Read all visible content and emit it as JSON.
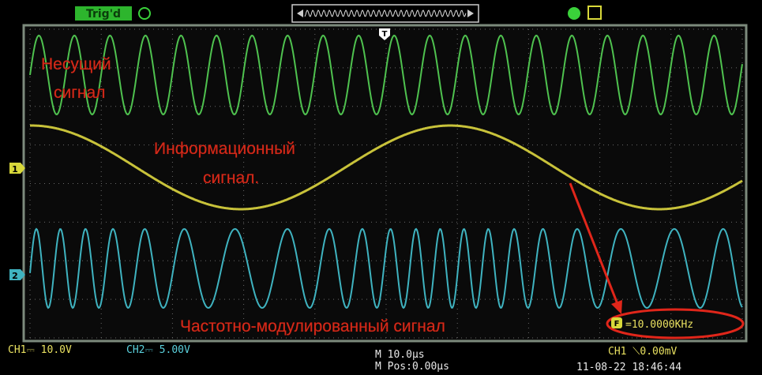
{
  "top_bar": {
    "trigger_status": "Trig'd",
    "trigger_marker": "T"
  },
  "channel_markers": [
    "1",
    "2"
  ],
  "annotations": {
    "carrier": [
      "Несущий",
      "сигнал"
    ],
    "information": [
      "Информационный",
      "сигнал."
    ],
    "fm": "Частотно-модулированный сигнал"
  },
  "frequency_readout": {
    "icon": "F",
    "value": "=10.0000KHz"
  },
  "status_bar": {
    "ch1_scale": "CH1⎓ 10.0V",
    "ch2_scale": "CH2⎓ 5.00V",
    "timebase": "M 10.0μs",
    "position": "M Pos:0.00μs",
    "trigger": "CH1 ⟍0.00mV",
    "datetime": "11-08-22 18:46:44"
  }
}
